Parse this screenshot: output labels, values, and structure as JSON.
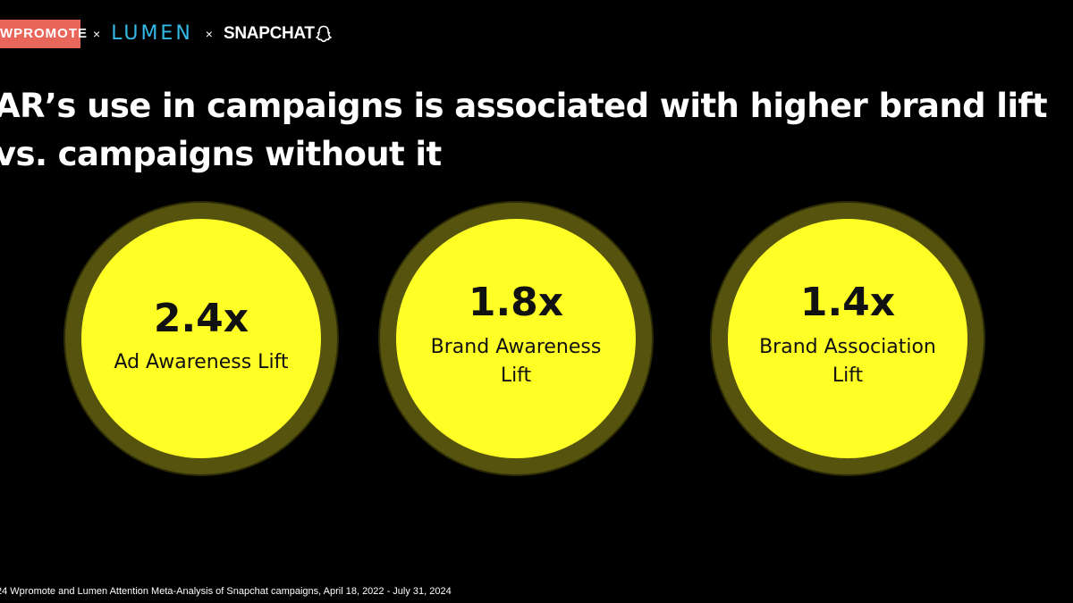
{
  "logos": {
    "wpromote": "WPROMOTE",
    "separator_1": "×",
    "lumen": "LUMEN",
    "separator_2": "×",
    "snapchat": "SNAPCHAT"
  },
  "headline": {
    "line1": "AR’s use in campaigns is associated with higher brand lift",
    "line2": "vs. campaigns without it"
  },
  "stats": [
    {
      "value": "2.4x",
      "label_line1": "Ad Awareness Lift",
      "label_line2": ""
    },
    {
      "value": "1.8x",
      "label_line1": "Brand Awareness",
      "label_line2": "Lift"
    },
    {
      "value": "1.4x",
      "label_line1": "Brand Association",
      "label_line2": "Lift"
    }
  ],
  "footnote": "24 Wpromote and Lumen Attention Meta-Analysis of Snapchat campaigns, April 18, 2022 - July 31, 2024",
  "colors": {
    "background": "#000000",
    "circle_fill": "#ffff26",
    "circle_ring": "#56530e",
    "wpromote_brand": "#e8665a",
    "lumen_brand": "#35b9e6"
  }
}
